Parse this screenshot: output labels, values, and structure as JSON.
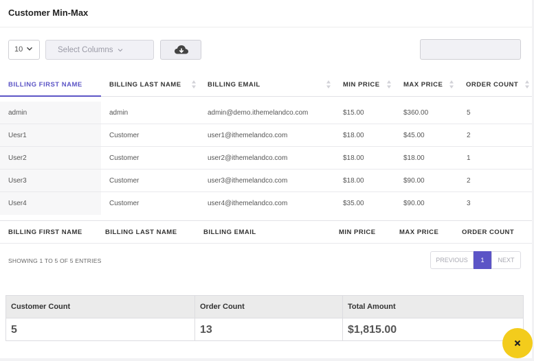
{
  "page": {
    "title": "Customer Min-Max"
  },
  "toolbar": {
    "page_size": "10",
    "select_columns_placeholder": "Select Columns",
    "download_icon": "cloud-download-icon",
    "search_value": ""
  },
  "table": {
    "columns": [
      "BILLING FIRST NAME",
      "BILLING LAST NAME",
      "BILLING EMAIL",
      "MIN PRICE",
      "MAX PRICE",
      "ORDER COUNT"
    ],
    "sorted_column": "BILLING FIRST NAME",
    "rows": [
      [
        "admin",
        "admin",
        "admin@demo.ithemelandco.com",
        "$15.00",
        "$360.00",
        "5"
      ],
      [
        "Uesr1",
        "Customer",
        "user1@ithemelandco.com",
        "$18.00",
        "$45.00",
        "2"
      ],
      [
        "User2",
        "Customer",
        "user2@ithemelandco.com",
        "$18.00",
        "$18.00",
        "1"
      ],
      [
        "User3",
        "Customer",
        "user3@ithemelandco.com",
        "$18.00",
        "$90.00",
        "2"
      ],
      [
        "User4",
        "Customer",
        "user4@ithemelandco.com",
        "$35.00",
        "$90.00",
        "3"
      ]
    ],
    "footer": [
      "BILLING FIRST NAME",
      "BILLING LAST NAME",
      "BILLING EMAIL",
      "MIN PRICE",
      "MAX PRICE",
      "ORDER COUNT"
    ]
  },
  "pagination": {
    "info": "SHOWING 1 TO 5 OF 5 ENTRIES",
    "previous": "PREVIOUS",
    "current_page": "1",
    "next": "NEXT"
  },
  "summary": {
    "labels": [
      "Customer Count",
      "Order Count",
      "Total Amount"
    ],
    "values": [
      "5",
      "13",
      "$1,815.00"
    ]
  },
  "colors": {
    "accent": "#5b54c6",
    "fab": "#f3cc1c"
  },
  "fab": {
    "icon": "close-icon"
  }
}
